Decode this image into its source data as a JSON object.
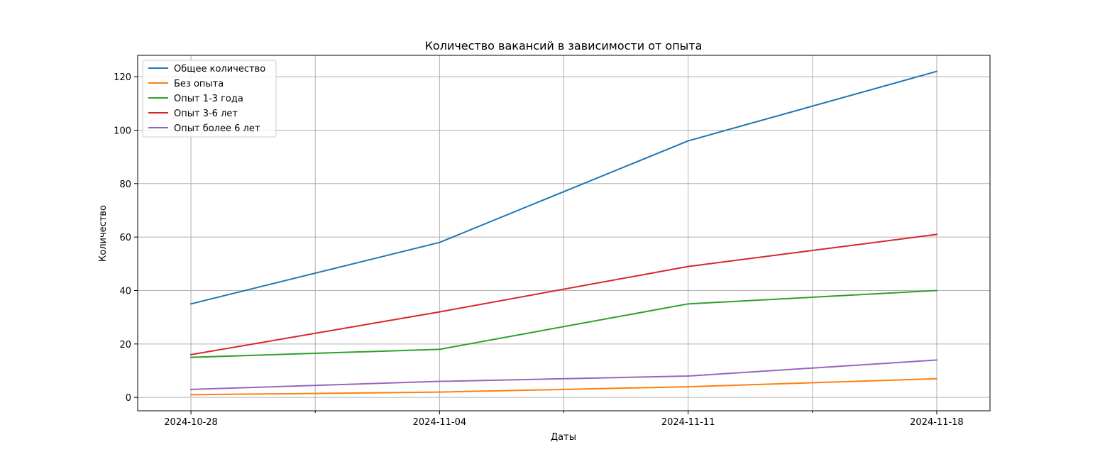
{
  "chart_data": {
    "type": "line",
    "title": "Количество вакансий в зависимости от опыта",
    "xlabel": "Даты",
    "ylabel": "Количество",
    "x": [
      "2024-10-28",
      "2024-11-04",
      "2024-11-11",
      "2024-11-18"
    ],
    "x_tick_labels": [
      "2024-10-28",
      "2024-11-04",
      "2024-11-11",
      "2024-11-18"
    ],
    "x_minor_ticks": [
      "2024-10-31T12:00",
      "2024-11-07T12:00",
      "2024-11-14T12:00"
    ],
    "xlim": [
      "2024-10-26T12:00",
      "2024-11-19T12:00"
    ],
    "ylim": [
      -5,
      128
    ],
    "y_ticks": [
      0,
      20,
      40,
      60,
      80,
      100,
      120
    ],
    "grid": true,
    "legend_position": "upper-left",
    "series": [
      {
        "name": "Общее количество",
        "color": "#1f77b4",
        "values": [
          35,
          58,
          96,
          122
        ]
      },
      {
        "name": "Без опыта",
        "color": "#ff7f0e",
        "values": [
          1,
          2,
          4,
          7
        ]
      },
      {
        "name": "Опыт 1-3 года",
        "color": "#2ca02c",
        "values": [
          15,
          18,
          35,
          40
        ]
      },
      {
        "name": "Опыт 3-6 лет",
        "color": "#d62728",
        "values": [
          16,
          32,
          49,
          61
        ]
      },
      {
        "name": "Опыт более 6 лет",
        "color": "#9467bd",
        "values": [
          3,
          6,
          8,
          14
        ]
      }
    ]
  }
}
